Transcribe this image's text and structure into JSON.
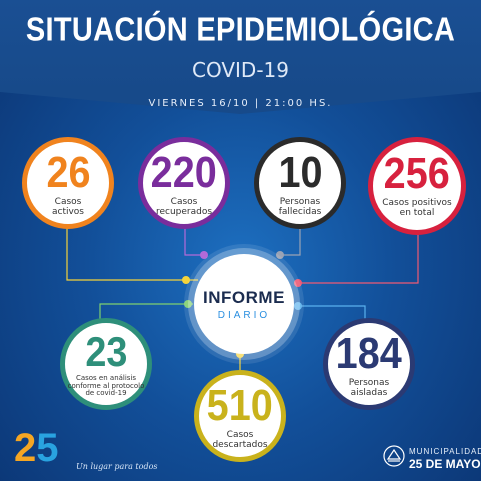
{
  "header": {
    "title": "SITUACIÓN EPIDEMIOLÓGICA",
    "subtitle": "COVID-19",
    "dateline": "VIERNES 16/10 | 21:00 HS."
  },
  "center": {
    "line1": "INFORME",
    "line2": "DIARIO"
  },
  "stats": {
    "activos": {
      "value": "26",
      "label1": "Casos",
      "label2": "activos",
      "color": "#f0831e"
    },
    "recuperados": {
      "value": "220",
      "label1": "Casos",
      "label2": "recuperados",
      "color": "#7a2d9c"
    },
    "fallecidas": {
      "value": "10",
      "label1": "Personas",
      "label2": "fallecidas",
      "color": "#2b2b2b"
    },
    "positivos": {
      "value": "256",
      "label1": "Casos positivos",
      "label2": "en total",
      "color": "#d7213e"
    },
    "analisis": {
      "value": "23",
      "label1": "Casos en análisis",
      "label2": "conforme al protocolo",
      "label3": "de covid-19",
      "color": "#2e8f7a"
    },
    "descartados": {
      "value": "510",
      "label1": "Casos",
      "label2": "descartados",
      "color": "#c9b21c"
    },
    "aisladas": {
      "value": "184",
      "label1": "Personas",
      "label2": "aisladas",
      "color": "#2b3a73"
    }
  },
  "footer": {
    "logo_digit1": "2",
    "logo_digit2": "5",
    "slogan": "Un lugar para todos",
    "muni_line1": "MUNICIPALIDAD",
    "muni_line2": "25 DE MAYO"
  },
  "icons": [
    "municipal-emblem-icon"
  ]
}
